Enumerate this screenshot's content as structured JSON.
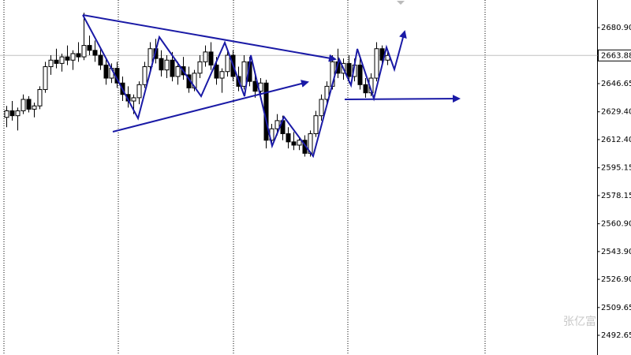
{
  "chart_data": {
    "type": "candlestick",
    "up_color": "#ffffff",
    "down_color": "#000000",
    "outline_color": "#000000",
    "ylim": [
      2480.6,
      2697.8
    ],
    "yticks": [
      {
        "value": 2680.9,
        "label": "2680.90"
      },
      {
        "value": 2646.65,
        "label": "2646.65"
      },
      {
        "value": 2629.4,
        "label": "2629.40"
      },
      {
        "value": 2612.4,
        "label": "2612.40"
      },
      {
        "value": 2595.15,
        "label": "2595.15"
      },
      {
        "value": 2578.15,
        "label": "2578.15"
      },
      {
        "value": 2560.9,
        "label": "2560.90"
      },
      {
        "value": 2543.9,
        "label": "2543.90"
      },
      {
        "value": 2526.9,
        "label": "2526.90"
      },
      {
        "value": 2509.65,
        "label": "2509.65"
      },
      {
        "value": 2492.65,
        "label": "2492.65"
      }
    ],
    "last_price": 2663.88,
    "watermark": "张亿富",
    "ohlc": [
      [
        2626,
        2633,
        2620,
        2630
      ],
      [
        2630,
        2636,
        2624,
        2627
      ],
      [
        2627,
        2632,
        2618,
        2630
      ],
      [
        2630,
        2640,
        2628,
        2637
      ],
      [
        2637,
        2639,
        2629,
        2631
      ],
      [
        2631,
        2635,
        2626,
        2633
      ],
      [
        2633,
        2645,
        2631,
        2643
      ],
      [
        2643,
        2660,
        2641,
        2657
      ],
      [
        2657,
        2664,
        2652,
        2661
      ],
      [
        2661,
        2668,
        2656,
        2659
      ],
      [
        2659,
        2665,
        2654,
        2663
      ],
      [
        2663,
        2670,
        2658,
        2661
      ],
      [
        2661,
        2667,
        2655,
        2665
      ],
      [
        2665,
        2672,
        2660,
        2663
      ],
      [
        2663,
        2690,
        2661,
        2670
      ],
      [
        2670,
        2676,
        2664,
        2667
      ],
      [
        2667,
        2673,
        2660,
        2664
      ],
      [
        2664,
        2668,
        2655,
        2658
      ],
      [
        2658,
        2662,
        2646,
        2650
      ],
      [
        2650,
        2659,
        2647,
        2656
      ],
      [
        2656,
        2660,
        2644,
        2647
      ],
      [
        2647,
        2651,
        2636,
        2640
      ],
      [
        2640,
        2645,
        2632,
        2636
      ],
      [
        2636,
        2640,
        2628,
        2638
      ],
      [
        2638,
        2648,
        2634,
        2646
      ],
      [
        2646,
        2660,
        2644,
        2657
      ],
      [
        2657,
        2672,
        2654,
        2668
      ],
      [
        2668,
        2674,
        2659,
        2662
      ],
      [
        2662,
        2667,
        2651,
        2655
      ],
      [
        2655,
        2664,
        2650,
        2661
      ],
      [
        2661,
        2666,
        2648,
        2651
      ],
      [
        2651,
        2660,
        2646,
        2657
      ],
      [
        2657,
        2663,
        2649,
        2652
      ],
      [
        2652,
        2657,
        2641,
        2644
      ],
      [
        2644,
        2655,
        2642,
        2653
      ],
      [
        2653,
        2664,
        2650,
        2660
      ],
      [
        2660,
        2670,
        2657,
        2666
      ],
      [
        2666,
        2672,
        2655,
        2658
      ],
      [
        2658,
        2663,
        2646,
        2650
      ],
      [
        2650,
        2656,
        2641,
        2654
      ],
      [
        2654,
        2668,
        2651,
        2664
      ],
      [
        2664,
        2667,
        2648,
        2651
      ],
      [
        2651,
        2657,
        2642,
        2645
      ],
      [
        2645,
        2664,
        2643,
        2660
      ],
      [
        2660,
        2663,
        2645,
        2648
      ],
      [
        2648,
        2654,
        2638,
        2642
      ],
      [
        2642,
        2650,
        2637,
        2647
      ],
      [
        2647,
        2649,
        2607,
        2612
      ],
      [
        2612,
        2622,
        2609,
        2619
      ],
      [
        2619,
        2628,
        2615,
        2624
      ],
      [
        2624,
        2627,
        2612,
        2616
      ],
      [
        2616,
        2620,
        2607,
        2611
      ],
      [
        2611,
        2617,
        2606,
        2609
      ],
      [
        2609,
        2614,
        2606,
        2612
      ],
      [
        2612,
        2615,
        2602,
        2604
      ],
      [
        2604,
        2618,
        2602,
        2616
      ],
      [
        2616,
        2630,
        2614,
        2627
      ],
      [
        2627,
        2640,
        2624,
        2637
      ],
      [
        2637,
        2648,
        2634,
        2645
      ],
      [
        2645,
        2664,
        2643,
        2660
      ],
      [
        2660,
        2668,
        2650,
        2653
      ],
      [
        2653,
        2662,
        2649,
        2659
      ],
      [
        2659,
        2664,
        2647,
        2651
      ],
      [
        2651,
        2662,
        2648,
        2658
      ],
      [
        2658,
        2663,
        2643,
        2646
      ],
      [
        2646,
        2650,
        2638,
        2641
      ],
      [
        2641,
        2653,
        2639,
        2650
      ],
      [
        2650,
        2672,
        2648,
        2668
      ],
      [
        2668,
        2670,
        2658,
        2661
      ],
      [
        2661,
        2666,
        2658,
        2663.88
      ]
    ]
  }
}
